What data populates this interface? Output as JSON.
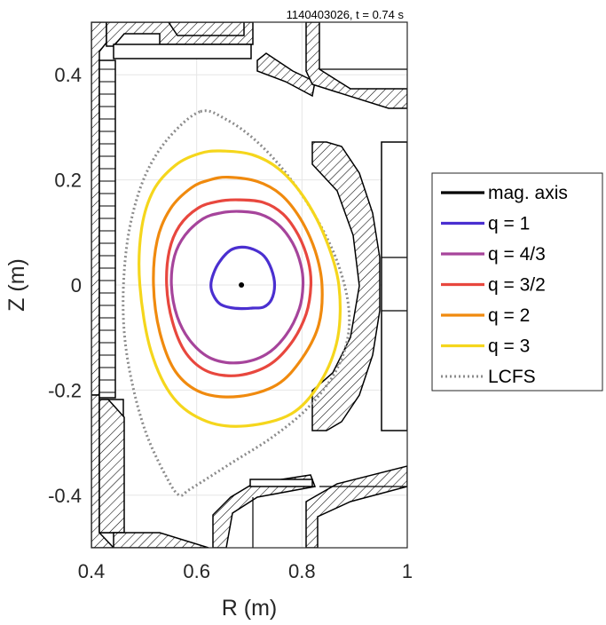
{
  "chart_data": {
    "type": "line",
    "title": "1140403026, t = 0.74 s",
    "xlabel": "R (m)",
    "ylabel": "Z (m)",
    "xlim": [
      0.4,
      1.0
    ],
    "ylim": [
      -0.5,
      0.5
    ],
    "xticks": [
      0.4,
      0.6,
      0.8,
      1.0
    ],
    "xtick_labels": [
      "0.4",
      "0.6",
      "0.8",
      "1"
    ],
    "yticks": [
      0.4,
      0.2,
      0.0,
      -0.2,
      -0.4
    ],
    "ytick_labels": [
      "0.4",
      "0.2",
      "0",
      "-0.2",
      "-0.4"
    ],
    "grid": true,
    "legend_position": "outside-right",
    "magnetic_axis": {
      "name": "mag. axis",
      "color": "#000000",
      "R": 0.685,
      "Z": 0.0
    },
    "series": [
      {
        "name": "q = 1",
        "color": "#4a2fd0",
        "style": "solid",
        "R": [
          0.685,
          0.707,
          0.728,
          0.742,
          0.748,
          0.742,
          0.727,
          0.706,
          0.685,
          0.664,
          0.644,
          0.631,
          0.627,
          0.632,
          0.644,
          0.664,
          0.685
        ],
        "Z": [
          0.072,
          0.068,
          0.055,
          0.03,
          0.0,
          -0.028,
          -0.042,
          -0.044,
          -0.045,
          -0.043,
          -0.036,
          -0.018,
          0.0,
          0.022,
          0.045,
          0.066,
          0.072
        ]
      },
      {
        "name": "q = 4/3",
        "color": "#a6449b",
        "style": "solid",
        "R": [
          0.68,
          0.72,
          0.755,
          0.782,
          0.798,
          0.802,
          0.795,
          0.77,
          0.732,
          0.68,
          0.628,
          0.589,
          0.563,
          0.552,
          0.558,
          0.578,
          0.612,
          0.645,
          0.68
        ],
        "Z": [
          0.14,
          0.135,
          0.115,
          0.08,
          0.038,
          0.0,
          -0.045,
          -0.095,
          -0.132,
          -0.148,
          -0.14,
          -0.108,
          -0.06,
          0.0,
          0.055,
          0.095,
          0.126,
          0.137,
          0.14
        ]
      },
      {
        "name": "q = 3/2",
        "color": "#e8473e",
        "style": "solid",
        "R": [
          0.68,
          0.727,
          0.764,
          0.793,
          0.812,
          0.817,
          0.808,
          0.78,
          0.738,
          0.68,
          0.622,
          0.58,
          0.554,
          0.543,
          0.548,
          0.567,
          0.602,
          0.64,
          0.68
        ],
        "Z": [
          0.162,
          0.157,
          0.135,
          0.095,
          0.045,
          0.0,
          -0.055,
          -0.11,
          -0.152,
          -0.172,
          -0.165,
          -0.13,
          -0.07,
          0.0,
          0.065,
          0.112,
          0.146,
          0.159,
          0.162
        ]
      },
      {
        "name": "q = 2",
        "color": "#f08a0e",
        "style": "solid",
        "R": [
          0.66,
          0.715,
          0.76,
          0.797,
          0.825,
          0.838,
          0.832,
          0.8,
          0.752,
          0.68,
          0.61,
          0.56,
          0.53,
          0.518,
          0.525,
          0.55,
          0.59,
          0.625,
          0.66
        ],
        "Z": [
          0.205,
          0.197,
          0.172,
          0.126,
          0.065,
          0.0,
          -0.075,
          -0.14,
          -0.19,
          -0.212,
          -0.205,
          -0.165,
          -0.09,
          0.0,
          0.085,
          0.145,
          0.185,
          0.2,
          0.205
        ]
      },
      {
        "name": "q = 3",
        "color": "#f5d61c",
        "style": "solid",
        "R": [
          0.645,
          0.705,
          0.757,
          0.805,
          0.845,
          0.87,
          0.868,
          0.835,
          0.78,
          0.695,
          0.62,
          0.556,
          0.513,
          0.492,
          0.495,
          0.518,
          0.56,
          0.605,
          0.645
        ],
        "Z": [
          0.255,
          0.248,
          0.22,
          0.165,
          0.088,
          0.0,
          -0.1,
          -0.185,
          -0.245,
          -0.268,
          -0.26,
          -0.215,
          -0.125,
          0.0,
          0.105,
          0.18,
          0.228,
          0.25,
          0.255
        ]
      },
      {
        "name": "LCFS",
        "color": "#8c8c8c",
        "style": "dotted",
        "R": [
          0.607,
          0.656,
          0.712,
          0.768,
          0.82,
          0.863,
          0.887,
          0.887,
          0.862,
          0.81,
          0.743,
          0.672,
          0.617,
          0.585,
          0.567,
          0.545,
          0.505,
          0.477,
          0.462,
          0.462,
          0.475,
          0.503,
          0.547,
          0.607
        ],
        "Z": [
          0.33,
          0.315,
          0.275,
          0.215,
          0.14,
          0.055,
          -0.03,
          -0.1,
          -0.168,
          -0.235,
          -0.29,
          -0.335,
          -0.37,
          -0.39,
          -0.4,
          -0.37,
          -0.285,
          -0.185,
          -0.085,
          0.02,
          0.12,
          0.21,
          0.28,
          0.33
        ]
      }
    ]
  }
}
